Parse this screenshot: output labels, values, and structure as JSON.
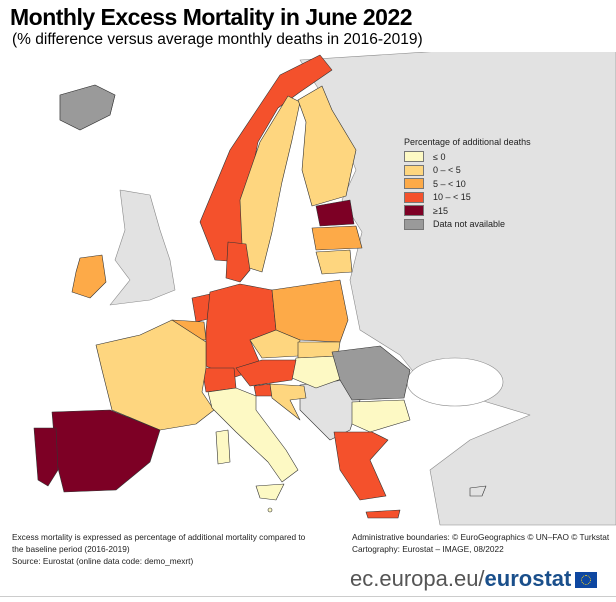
{
  "title": "Monthly Excess Mortality in June 2022",
  "subtitle": "(% difference versus average monthly deaths in 2016-2019)",
  "legend": {
    "title": "Percentage of additional deaths",
    "items": [
      {
        "label": "≤ 0",
        "color": "#fdf9c4"
      },
      {
        "label": "0 – < 5",
        "color": "#fed67f"
      },
      {
        "label": "5 – < 10",
        "color": "#fdaa48"
      },
      {
        "label": "10 – < 15",
        "color": "#f4512c"
      },
      {
        "label": "≥15",
        "color": "#7d0025"
      },
      {
        "label": "Data not available",
        "color": "#9a9a9a"
      }
    ]
  },
  "map_colors": {
    "sea": "#ffffff",
    "land_other": "#e2e2e2"
  },
  "countries": {
    "Norway": "10 – < 15",
    "Sweden": "0 – < 5",
    "Finland": "0 – < 5",
    "Estonia": "≥15",
    "Latvia": "5 – < 10",
    "Lithuania": "0 – < 5",
    "Denmark": "10 – < 15",
    "Ireland": "5 – < 10",
    "Iceland": "Data not available",
    "Netherlands": "10 – < 15",
    "Belgium": "5 – < 10",
    "Germany": "10 – < 15",
    "Poland": "5 – < 10",
    "Czechia": "0 – < 5",
    "Slovakia": "0 – < 5",
    "Hungary": "≤ 0",
    "Austria": "10 – < 15",
    "Switzerland": "10 – < 15",
    "Slovenia": "10 – < 15",
    "Croatia": "0 – < 5",
    "France": "0 – < 5",
    "Spain": "≥15",
    "Portugal": "≥15",
    "Italy": "≤ 0",
    "Malta": "≤ 0",
    "Romania": "Data not available",
    "Bulgaria": "≤ 0",
    "Greece": "10 – < 15"
  },
  "footer": {
    "note": "Excess mortality is expressed as percentage of additional mortality compared to the baseline period (2016-2019)",
    "source": "Source: Eurostat (online data code: demo_mexrt)",
    "boundaries": "Administrative boundaries: © EuroGeographics © UN–FAO © Turkstat",
    "cartography": "Cartography: Eurostat – IMAGE, 08/2022",
    "brand_url": "ec.europa.eu/",
    "brand_name": "eurostat"
  }
}
